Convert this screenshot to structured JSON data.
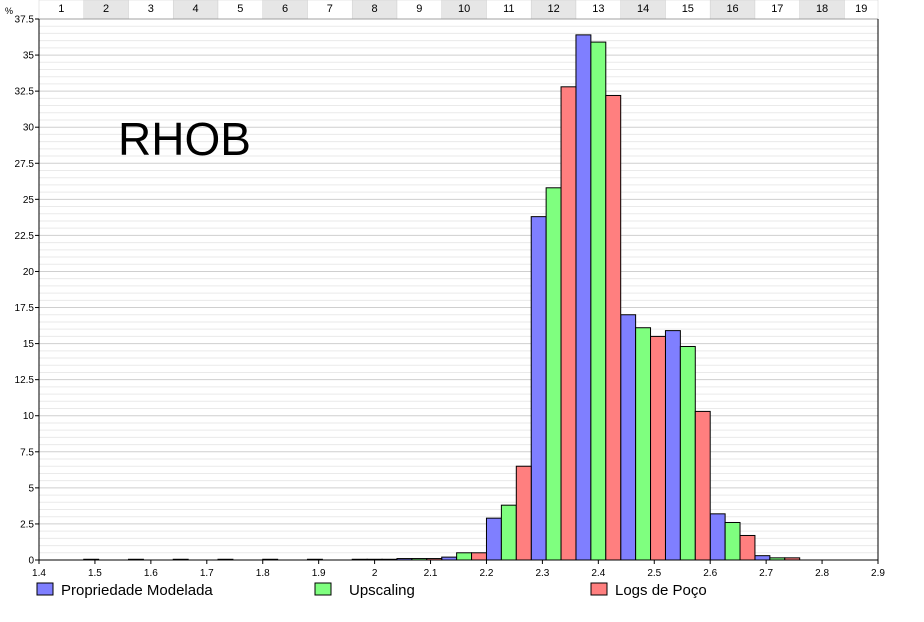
{
  "chart_data": {
    "type": "bar",
    "title": "RHOB",
    "ylabel": "%",
    "xlim": [
      1.4,
      2.9
    ],
    "ylim": [
      0,
      37.5
    ],
    "x_tick_step": 0.1,
    "y_tick_step": 2.5,
    "bin_width": 0.08,
    "grid": true,
    "legend_position": "bottom",
    "bin_labels": [
      "1",
      "2",
      "3",
      "4",
      "5",
      "6",
      "7",
      "8",
      "9",
      "10",
      "11",
      "12",
      "13",
      "14",
      "15",
      "16",
      "17",
      "18",
      "19"
    ],
    "bin_centers": [
      1.44,
      1.52,
      1.6,
      1.68,
      1.76,
      1.84,
      1.92,
      2.0,
      2.08,
      2.16,
      2.24,
      2.32,
      2.4,
      2.48,
      2.56,
      2.64,
      2.72,
      2.8,
      2.88
    ],
    "series": [
      {
        "name": "Propriedade Modelada",
        "color": "#7f7fff",
        "values": [
          0,
          0.05,
          0.05,
          0.05,
          0.05,
          0.05,
          0.05,
          0.05,
          0.1,
          0.2,
          2.9,
          23.8,
          36.4,
          17.0,
          15.9,
          3.2,
          0.3,
          0,
          0
        ]
      },
      {
        "name": "Upscaling",
        "color": "#7fff7f",
        "values": [
          0,
          0,
          0,
          0,
          0,
          0,
          0,
          0.05,
          0.1,
          0.5,
          3.8,
          25.8,
          35.9,
          16.1,
          14.8,
          2.6,
          0.15,
          0,
          0
        ]
      },
      {
        "name": "Logs de Poço",
        "color": "#ff7f7f",
        "values": [
          0,
          0,
          0,
          0,
          0,
          0,
          0,
          0.05,
          0.1,
          0.5,
          6.5,
          32.8,
          32.2,
          15.5,
          10.3,
          1.7,
          0.15,
          0,
          0
        ]
      }
    ]
  }
}
